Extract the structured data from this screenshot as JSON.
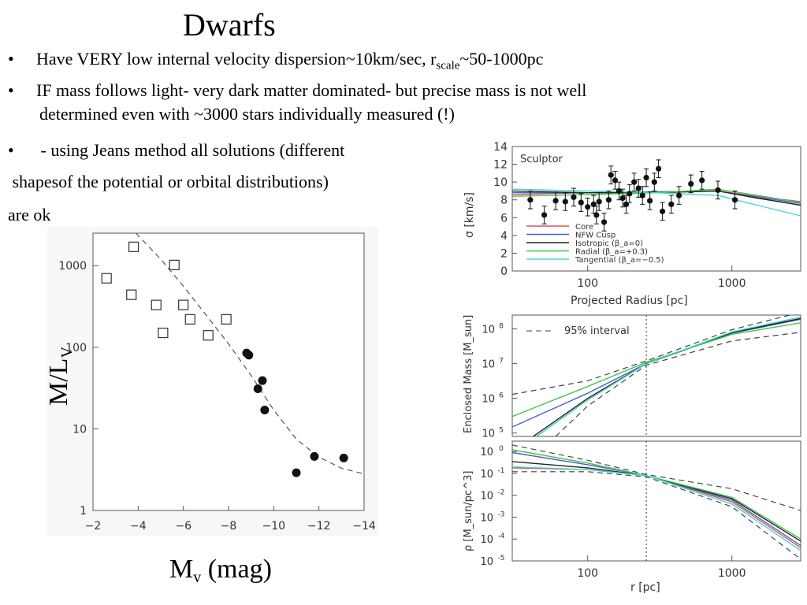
{
  "slide": {
    "title": "Dwarfs",
    "bullet1": {
      "marker": "•",
      "pre": "Have VERY low internal velocity dispersion~10km/sec, r",
      "sub": "scale",
      "post": "~50-1000pc"
    },
    "bullet2": {
      "marker": "•",
      "line1": "IF mass follows light- very dark matter dominated- but precise mass is not well",
      "line2": "determined even with ~3000 stars individually measured (!)"
    },
    "bullet3": {
      "marker": "•",
      "text": " - using Jeans method all solutions (different"
    },
    "line4": " shapesof the potential or orbital distributions)",
    "line5": "are ok"
  },
  "chart_data": [
    {
      "type": "scatter",
      "xlabel_main": "M",
      "xlabel_sub": "v",
      "xlabel_unit": " (mag)",
      "ylabel_main": "M/L",
      "ylabel_sub": "V",
      "xlim": [
        -2,
        -14
      ],
      "ylim": [
        1,
        2500
      ],
      "yscale": "log",
      "x_ticks": [
        "−2",
        "−4",
        "−6",
        "−8",
        "−10",
        "−12",
        "−14"
      ],
      "y_ticks": [
        "1",
        "10",
        "100",
        "1000"
      ],
      "open_squares": [
        {
          "x": -2.6,
          "y": 700
        },
        {
          "x": -3.7,
          "y": 440
        },
        {
          "x": -3.8,
          "y": 1700
        },
        {
          "x": -4.8,
          "y": 330
        },
        {
          "x": -5.1,
          "y": 150
        },
        {
          "x": -5.6,
          "y": 1020
        },
        {
          "x": -6.0,
          "y": 330
        },
        {
          "x": -6.3,
          "y": 220
        },
        {
          "x": -7.1,
          "y": 140
        },
        {
          "x": -7.9,
          "y": 220
        }
      ],
      "filled_circles": [
        {
          "x": -8.8,
          "y": 85
        },
        {
          "x": -8.9,
          "y": 80
        },
        {
          "x": -9.3,
          "y": 31
        },
        {
          "x": -9.5,
          "y": 39
        },
        {
          "x": -9.6,
          "y": 17
        },
        {
          "x": -11.0,
          "y": 2.9
        },
        {
          "x": -11.8,
          "y": 4.6
        },
        {
          "x": -13.1,
          "y": 4.4
        }
      ],
      "model_curve": [
        {
          "x": -3.9,
          "y": 2500
        },
        {
          "x": -5.0,
          "y": 1200
        },
        {
          "x": -6.0,
          "y": 560
        },
        {
          "x": -7.0,
          "y": 250
        },
        {
          "x": -8.0,
          "y": 110
        },
        {
          "x": -9.0,
          "y": 45
        },
        {
          "x": -10.0,
          "y": 17
        },
        {
          "x": -11.0,
          "y": 7.5
        },
        {
          "x": -12.0,
          "y": 4.5
        },
        {
          "x": -13.0,
          "y": 3.3
        },
        {
          "x": -14.0,
          "y": 2.8
        }
      ]
    },
    {
      "type": "line",
      "annotation": "Sculptor",
      "xlabel": "Projected Radius [pc]",
      "ylabel": "σ [km/s]",
      "xscale": "log",
      "xlim": [
        30,
        3000
      ],
      "ylim": [
        0,
        14
      ],
      "x_ticks": [
        "100",
        "1000"
      ],
      "y_ticks": [
        "0",
        "2",
        "4",
        "6",
        "8",
        "10",
        "12",
        "14"
      ],
      "legend_position": "bottom-left",
      "series": [
        {
          "name": "Core",
          "color": "#e05050",
          "points": [
            {
              "x": 30,
              "y": 8.6
            },
            {
              "x": 100,
              "y": 8.8
            },
            {
              "x": 300,
              "y": 8.9
            },
            {
              "x": 800,
              "y": 9.0
            },
            {
              "x": 1500,
              "y": 8.4
            },
            {
              "x": 3000,
              "y": 7.8
            }
          ]
        },
        {
          "name": "NFW Cusp",
          "color": "#4a5fd8",
          "points": [
            {
              "x": 30,
              "y": 8.8
            },
            {
              "x": 100,
              "y": 8.8
            },
            {
              "x": 300,
              "y": 8.9
            },
            {
              "x": 800,
              "y": 9.0
            },
            {
              "x": 1500,
              "y": 8.3
            },
            {
              "x": 3000,
              "y": 7.6
            }
          ]
        },
        {
          "name": "Isotropic (β_a=0)",
          "color": "#222222",
          "points": [
            {
              "x": 30,
              "y": 9.0
            },
            {
              "x": 100,
              "y": 8.8
            },
            {
              "x": 300,
              "y": 8.8
            },
            {
              "x": 800,
              "y": 9.0
            },
            {
              "x": 1500,
              "y": 8.2
            },
            {
              "x": 3000,
              "y": 7.4
            }
          ]
        },
        {
          "name": "Radial (β_a=+0.3)",
          "color": "#40c840",
          "points": [
            {
              "x": 30,
              "y": 8.4
            },
            {
              "x": 100,
              "y": 8.6
            },
            {
              "x": 300,
              "y": 8.8
            },
            {
              "x": 800,
              "y": 9.2
            },
            {
              "x": 1500,
              "y": 8.5
            },
            {
              "x": 3000,
              "y": 7.7
            }
          ]
        },
        {
          "name": "Tangential (β_a=−0.5)",
          "color": "#40d8d0",
          "points": [
            {
              "x": 30,
              "y": 9.2
            },
            {
              "x": 100,
              "y": 9.0
            },
            {
              "x": 300,
              "y": 8.8
            },
            {
              "x": 800,
              "y": 8.5
            },
            {
              "x": 1500,
              "y": 7.4
            },
            {
              "x": 3000,
              "y": 6.2
            }
          ]
        }
      ],
      "observations": [
        {
          "x": 40,
          "y": 8.0,
          "e": 1.0
        },
        {
          "x": 50,
          "y": 6.3,
          "e": 1.0
        },
        {
          "x": 60,
          "y": 7.9,
          "e": 1.0
        },
        {
          "x": 70,
          "y": 7.8,
          "e": 1.0
        },
        {
          "x": 80,
          "y": 8.3,
          "e": 1.0
        },
        {
          "x": 90,
          "y": 7.7,
          "e": 1.0
        },
        {
          "x": 100,
          "y": 7.2,
          "e": 1.0
        },
        {
          "x": 110,
          "y": 7.5,
          "e": 1.0
        },
        {
          "x": 115,
          "y": 6.3,
          "e": 1.0
        },
        {
          "x": 120,
          "y": 7.8,
          "e": 1.0
        },
        {
          "x": 130,
          "y": 5.5,
          "e": 1.0
        },
        {
          "x": 140,
          "y": 8.0,
          "e": 1.0
        },
        {
          "x": 145,
          "y": 10.8,
          "e": 1.0
        },
        {
          "x": 155,
          "y": 10.2,
          "e": 1.0
        },
        {
          "x": 165,
          "y": 9.0,
          "e": 1.0
        },
        {
          "x": 175,
          "y": 8.2,
          "e": 1.0
        },
        {
          "x": 185,
          "y": 7.5,
          "e": 1.0
        },
        {
          "x": 195,
          "y": 8.7,
          "e": 1.0
        },
        {
          "x": 210,
          "y": 10.0,
          "e": 1.0
        },
        {
          "x": 225,
          "y": 9.3,
          "e": 1.0
        },
        {
          "x": 240,
          "y": 8.5,
          "e": 1.0
        },
        {
          "x": 255,
          "y": 10.5,
          "e": 1.0
        },
        {
          "x": 270,
          "y": 7.9,
          "e": 1.0
        },
        {
          "x": 290,
          "y": 10.0,
          "e": 1.0
        },
        {
          "x": 310,
          "y": 11.5,
          "e": 1.0
        },
        {
          "x": 330,
          "y": 6.7,
          "e": 1.0
        },
        {
          "x": 380,
          "y": 7.5,
          "e": 1.0
        },
        {
          "x": 430,
          "y": 8.5,
          "e": 1.0
        },
        {
          "x": 520,
          "y": 9.8,
          "e": 1.0
        },
        {
          "x": 620,
          "y": 10.2,
          "e": 1.0
        },
        {
          "x": 800,
          "y": 9.1,
          "e": 1.0
        },
        {
          "x": 1050,
          "y": 8.0,
          "e": 1.0
        }
      ]
    },
    {
      "type": "line",
      "ylabel": "Enclosed Mass [M_sun]",
      "xscale": "log",
      "yscale": "log",
      "xlim": [
        30,
        3000
      ],
      "ylim": [
        80000,
        250000000
      ],
      "y_ticks": [
        "10^5",
        "10^6",
        "10^7",
        "10^8"
      ],
      "annotation": "95% interval",
      "vertical_marker_x": 255,
      "series": [
        {
          "name": "Core",
          "color": "#e05050",
          "points": [
            {
              "x": 40,
              "y": 60000
            },
            {
              "x": 100,
              "y": 900000
            },
            {
              "x": 255,
              "y": 10000000
            },
            {
              "x": 1000,
              "y": 80000000
            },
            {
              "x": 3000,
              "y": 200000000
            }
          ]
        },
        {
          "name": "NFW Cusp",
          "color": "#4a5fd8",
          "points": [
            {
              "x": 30,
              "y": 150000
            },
            {
              "x": 100,
              "y": 1400000
            },
            {
              "x": 255,
              "y": 10000000
            },
            {
              "x": 1000,
              "y": 75000000
            },
            {
              "x": 3000,
              "y": 190000000
            }
          ]
        },
        {
          "name": "Isotropic",
          "color": "#222222",
          "points": [
            {
              "x": 40,
              "y": 70000
            },
            {
              "x": 100,
              "y": 1000000
            },
            {
              "x": 255,
              "y": 10000000
            },
            {
              "x": 1000,
              "y": 78000000
            },
            {
              "x": 3000,
              "y": 200000000
            }
          ]
        },
        {
          "name": "Radial",
          "color": "#40c840",
          "points": [
            {
              "x": 30,
              "y": 300000
            },
            {
              "x": 100,
              "y": 2200000
            },
            {
              "x": 255,
              "y": 11000000
            },
            {
              "x": 1000,
              "y": 70000000
            },
            {
              "x": 3000,
              "y": 150000000
            }
          ]
        },
        {
          "name": "Tangential",
          "color": "#40d8d0",
          "points": [
            {
              "x": 40,
              "y": 60000
            },
            {
              "x": 100,
              "y": 900000
            },
            {
              "x": 255,
              "y": 10000000
            },
            {
              "x": 1000,
              "y": 82000000
            },
            {
              "x": 3000,
              "y": 220000000
            }
          ]
        }
      ],
      "interval_upper": [
        {
          "x": 30,
          "y": 1300000
        },
        {
          "x": 100,
          "y": 3200000
        },
        {
          "x": 255,
          "y": 12000000
        },
        {
          "x": 1000,
          "y": 95000000
        },
        {
          "x": 3000,
          "y": 300000000
        }
      ],
      "interval_lower": [
        {
          "x": 60,
          "y": 80000
        },
        {
          "x": 100,
          "y": 600000
        },
        {
          "x": 255,
          "y": 9000000
        },
        {
          "x": 1000,
          "y": 45000000
        },
        {
          "x": 3000,
          "y": 80000000
        }
      ]
    },
    {
      "type": "line",
      "xlabel": "r [pc]",
      "ylabel": "ρ [M_sun/pc^3]",
      "xscale": "log",
      "yscale": "log",
      "xlim": [
        30,
        3000
      ],
      "ylim": [
        1e-05,
        3
      ],
      "x_ticks": [
        "100",
        "1000"
      ],
      "y_ticks": [
        "10^-5",
        "10^-4",
        "10^-3",
        "10^-2",
        "10^-1",
        "10^0"
      ],
      "vertical_marker_x": 255,
      "series": [
        {
          "name": "Core",
          "color": "#e05050",
          "points": [
            {
              "x": 30,
              "y": 0.18
            },
            {
              "x": 100,
              "y": 0.15
            },
            {
              "x": 255,
              "y": 0.08
            },
            {
              "x": 1000,
              "y": 0.005
            },
            {
              "x": 3000,
              "y": 4e-05
            }
          ]
        },
        {
          "name": "NFW Cusp",
          "color": "#4a5fd8",
          "points": [
            {
              "x": 30,
              "y": 0.9
            },
            {
              "x": 100,
              "y": 0.25
            },
            {
              "x": 255,
              "y": 0.08
            },
            {
              "x": 1000,
              "y": 0.006
            },
            {
              "x": 3000,
              "y": 5e-05
            }
          ]
        },
        {
          "name": "Isotropic",
          "color": "#222222",
          "points": [
            {
              "x": 30,
              "y": 0.35
            },
            {
              "x": 100,
              "y": 0.18
            },
            {
              "x": 255,
              "y": 0.08
            },
            {
              "x": 1000,
              "y": 0.007
            },
            {
              "x": 3000,
              "y": 8e-05
            }
          ]
        },
        {
          "name": "Radial",
          "color": "#40c840",
          "points": [
            {
              "x": 30,
              "y": 1.2
            },
            {
              "x": 100,
              "y": 0.3
            },
            {
              "x": 255,
              "y": 0.08
            },
            {
              "x": 1000,
              "y": 0.008
            },
            {
              "x": 3000,
              "y": 0.0001
            }
          ]
        },
        {
          "name": "Tangential",
          "color": "#40d8d0",
          "points": [
            {
              "x": 30,
              "y": 0.2
            },
            {
              "x": 100,
              "y": 0.15
            },
            {
              "x": 255,
              "y": 0.08
            },
            {
              "x": 1000,
              "y": 0.004
            },
            {
              "x": 3000,
              "y": 3e-05
            }
          ]
        }
      ],
      "interval_upper": [
        {
          "x": 30,
          "y": 2.0
        },
        {
          "x": 100,
          "y": 0.4
        },
        {
          "x": 255,
          "y": 0.09
        },
        {
          "x": 1000,
          "y": 0.02
        },
        {
          "x": 3000,
          "y": 0.002
        }
      ],
      "interval_lower": [
        {
          "x": 30,
          "y": 0.12
        },
        {
          "x": 100,
          "y": 0.12
        },
        {
          "x": 255,
          "y": 0.07
        },
        {
          "x": 1000,
          "y": 0.003
        },
        {
          "x": 3000,
          "y": 1.2e-05
        }
      ]
    }
  ]
}
